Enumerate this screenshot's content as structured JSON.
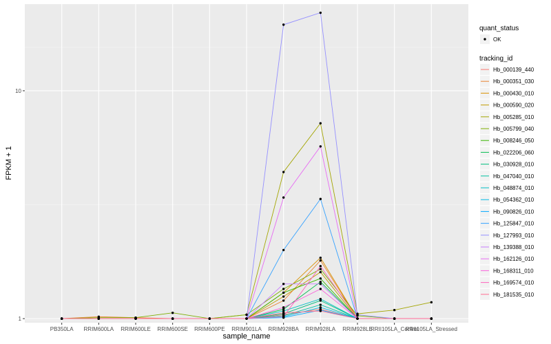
{
  "chart_data": {
    "type": "line",
    "xlabel": "sample_name",
    "ylabel": "FPKM + 1",
    "y_scale": "log10",
    "ylim": [
      0.96,
      24
    ],
    "y_ticks": [
      1,
      10
    ],
    "y_tick_labels": [
      "1",
      "10"
    ],
    "grid": true,
    "legend_position": "right",
    "categories": [
      "PB350LA",
      "RRIM600LA",
      "RRIM600LE",
      "RRIM600SE",
      "RRIM600PE",
      "RRIM901LA",
      "RRIM928BA",
      "RRIM928LA",
      "RRIM928LE",
      "RRII105LA_Control",
      "RRII105LA_Stressed"
    ],
    "x_tick_labels": [
      "PB350LA",
      "RRIM600LA",
      "RRIM600LE",
      "RRIM600SE",
      "RRIM600PE",
      "RRIM901LA",
      "RRIM928BA",
      "RRIM928LA",
      "RRIM928LE",
      "RRII105LA_Control",
      "RRII105LA_Stressed"
    ],
    "quant_status_legend": {
      "title": "quant_status",
      "entries": [
        "OK"
      ]
    },
    "series_legend_title": "tracking_id",
    "series": [
      {
        "name": "Hb_000139_440",
        "color": "#F8766D",
        "values": [
          1,
          1,
          1,
          1,
          1,
          1,
          1.04,
          1.1,
          1,
          1,
          1
        ]
      },
      {
        "name": "Hb_000351_030",
        "color": "#EA8331",
        "values": [
          1,
          1.02,
          1.01,
          1,
          1,
          1,
          1.2,
          1.8,
          1,
          1,
          1
        ]
      },
      {
        "name": "Hb_000430_010",
        "color": "#D89000",
        "values": [
          1,
          1,
          1,
          1,
          1,
          1,
          1.3,
          1.85,
          1,
          1,
          1
        ]
      },
      {
        "name": "Hb_000590_020",
        "color": "#C09B00",
        "values": [
          1,
          1,
          1,
          1,
          1,
          1,
          1.25,
          1.6,
          1,
          1,
          1
        ]
      },
      {
        "name": "Hb_005285_010",
        "color": "#A3A500",
        "values": [
          1,
          1,
          1,
          1,
          1,
          1.04,
          4.4,
          7.2,
          1.05,
          1.09,
          1.18
        ]
      },
      {
        "name": "Hb_005799_040",
        "color": "#7CAE00",
        "values": [
          1,
          1.01,
          1.01,
          1.06,
          1,
          1.04,
          1.35,
          1.65,
          1.03,
          1,
          1
        ]
      },
      {
        "name": "Hb_008246_050",
        "color": "#39B600",
        "values": [
          1,
          1,
          1,
          1,
          1,
          1,
          1.3,
          1.5,
          1,
          1,
          1
        ]
      },
      {
        "name": "Hb_022206_060",
        "color": "#00BB4E",
        "values": [
          1,
          1,
          1,
          1,
          1,
          1,
          1.1,
          1.45,
          1,
          1,
          1
        ]
      },
      {
        "name": "Hb_030928_010",
        "color": "#00BF7D",
        "values": [
          1,
          1,
          1,
          1,
          1,
          1,
          1.05,
          1.2,
          1,
          1,
          1
        ]
      },
      {
        "name": "Hb_047040_010",
        "color": "#00C1A3",
        "values": [
          1,
          1,
          1,
          1,
          1,
          1,
          1.03,
          1.15,
          1,
          1,
          1
        ]
      },
      {
        "name": "Hb_048874_010",
        "color": "#00BFC4",
        "values": [
          1,
          1,
          1,
          1,
          1,
          1,
          1.08,
          1.22,
          1,
          1,
          1
        ]
      },
      {
        "name": "Hb_054362_010",
        "color": "#00B8E5",
        "values": [
          1,
          1,
          1,
          1,
          1,
          1,
          1.02,
          1.12,
          1,
          1,
          1
        ]
      },
      {
        "name": "Hb_090826_010",
        "color": "#00A9FF",
        "values": [
          1,
          1,
          1,
          1,
          1,
          1,
          1.01,
          1.09,
          1,
          1,
          1
        ]
      },
      {
        "name": "Hb_125847_010",
        "color": "#35A2FF",
        "values": [
          1,
          1,
          1,
          1,
          1,
          1,
          2.0,
          3.35,
          1,
          1,
          1
        ]
      },
      {
        "name": "Hb_127993_010",
        "color": "#9590FF",
        "values": [
          1,
          1,
          1,
          1,
          1,
          1,
          19.5,
          22.0,
          1.04,
          1,
          1
        ]
      },
      {
        "name": "Hb_139388_010",
        "color": "#C77CFF",
        "values": [
          1,
          1,
          1,
          1,
          1,
          1,
          1.42,
          1.42,
          1,
          1,
          1
        ]
      },
      {
        "name": "Hb_162126_010",
        "color": "#E76BF3",
        "values": [
          1,
          1,
          1,
          1,
          1,
          1,
          3.4,
          5.7,
          1,
          1,
          1
        ]
      },
      {
        "name": "Hb_168311_010",
        "color": "#FA62DB",
        "values": [
          1,
          1,
          1,
          1,
          1,
          1,
          1.12,
          1.35,
          1,
          1,
          1
        ]
      },
      {
        "name": "Hb_169574_010",
        "color": "#FF62BC",
        "values": [
          1,
          1,
          1,
          1,
          1,
          1,
          1.02,
          1.7,
          1,
          1,
          1
        ]
      },
      {
        "name": "Hb_181535_010",
        "color": "#FF6C91",
        "values": [
          1,
          1,
          1,
          1,
          1,
          1,
          1.06,
          1.08,
          1,
          1,
          1
        ]
      }
    ]
  }
}
